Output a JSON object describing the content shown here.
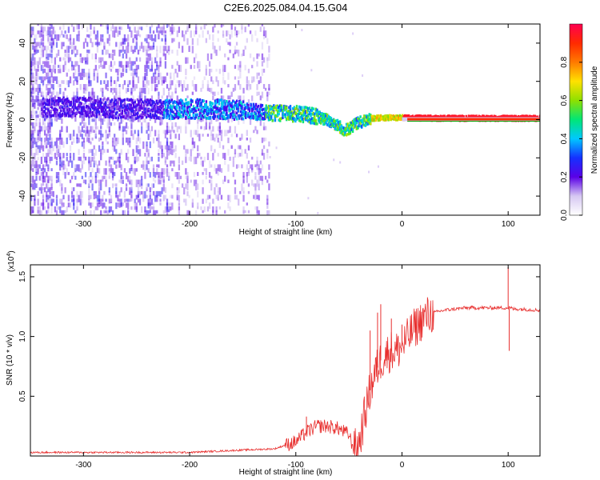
{
  "title": "C2E6.2025.084.04.15.G04",
  "chart_data": [
    {
      "type": "heatmap",
      "xlabel": "Height of straight line (km)",
      "ylabel": "Frequency (Hz)",
      "xlim": [
        -350,
        130
      ],
      "ylim": [
        -50,
        50
      ],
      "xticks": [
        -300,
        -200,
        -100,
        0,
        100
      ],
      "yticks": [
        -40,
        -20,
        0,
        20,
        40
      ],
      "colorbar": {
        "label": "Normalized spectral amplitude",
        "range": [
          0.0,
          1.0
        ],
        "ticks": [
          0.0,
          0.2,
          0.4,
          0.6,
          0.8
        ],
        "colormap": [
          "#ffffff",
          "#d6c8f2",
          "#5a00e6",
          "#1530ff",
          "#00c8ff",
          "#00e676",
          "#8ee000",
          "#ffe100",
          "#ff7a00",
          "#ff2a00",
          "#ff0050"
        ]
      },
      "ridge_center_hz": {
        "x": [
          -340,
          -300,
          -250,
          -220,
          -200,
          -175,
          -150,
          -125,
          -100,
          -90,
          -80,
          -70,
          -60,
          -55,
          -50,
          -45,
          -40,
          -30,
          -20,
          -10,
          0,
          20,
          60,
          100,
          130
        ],
        "y": [
          6,
          6,
          5,
          5,
          5,
          5,
          4,
          3,
          2.5,
          2,
          1,
          -1,
          -4,
          -6,
          -5,
          -3,
          -2,
          0,
          0.5,
          0.5,
          0.5,
          0.3,
          0.2,
          0.2,
          0.2
        ]
      },
      "noise_extent_km": [
        -350,
        -125
      ]
    },
    {
      "type": "line",
      "xlabel": "Height of straight line (km)",
      "ylabel": "SNR (10 * v/v)",
      "y_multiplier": "(x10",
      "y_multiplier_exp": "4",
      "y_multiplier_close": ")",
      "xlim": [
        -350,
        130
      ],
      "ylim": [
        0,
        1.6
      ],
      "xticks": [
        -300,
        -200,
        -100,
        0,
        100
      ],
      "yticks": [
        0.5,
        1.0,
        1.5
      ],
      "ytick_labels": [
        "0.5",
        "1.0",
        "1.5"
      ],
      "color": "#e8302f",
      "series": [
        {
          "x": [
            -350,
            -300,
            -250,
            -200,
            -150,
            -120,
            -100,
            -90,
            -80,
            -70,
            -60,
            -50,
            -45,
            -40,
            -35,
            -30,
            -25,
            -20,
            -15,
            -10,
            -5,
            0,
            5,
            10,
            20,
            30,
            40,
            50,
            60,
            80,
            95,
            100,
            102,
            105,
            110,
            130
          ],
          "y": [
            0.03,
            0.03,
            0.03,
            0.03,
            0.05,
            0.06,
            0.12,
            0.2,
            0.25,
            0.25,
            0.23,
            0.18,
            0.05,
            0.12,
            0.35,
            0.55,
            0.7,
            0.8,
            0.85,
            0.88,
            0.88,
            0.92,
            0.98,
            1.05,
            1.15,
            1.2,
            1.22,
            1.23,
            1.24,
            1.24,
            1.24,
            1.24,
            1.24,
            1.23,
            1.23,
            1.22
          ]
        }
      ],
      "spikes": [
        {
          "x": -90,
          "y": 0.33
        },
        {
          "x": -30,
          "y": 1.05
        },
        {
          "x": -23,
          "y": 1.2
        },
        {
          "x": -20,
          "y": 1.27
        },
        {
          "x": -10,
          "y": 1.15
        },
        {
          "x": 0,
          "y": 1.1
        },
        {
          "x": 100,
          "y": 1.58
        },
        {
          "x": 101,
          "y": 0.88
        }
      ]
    }
  ]
}
